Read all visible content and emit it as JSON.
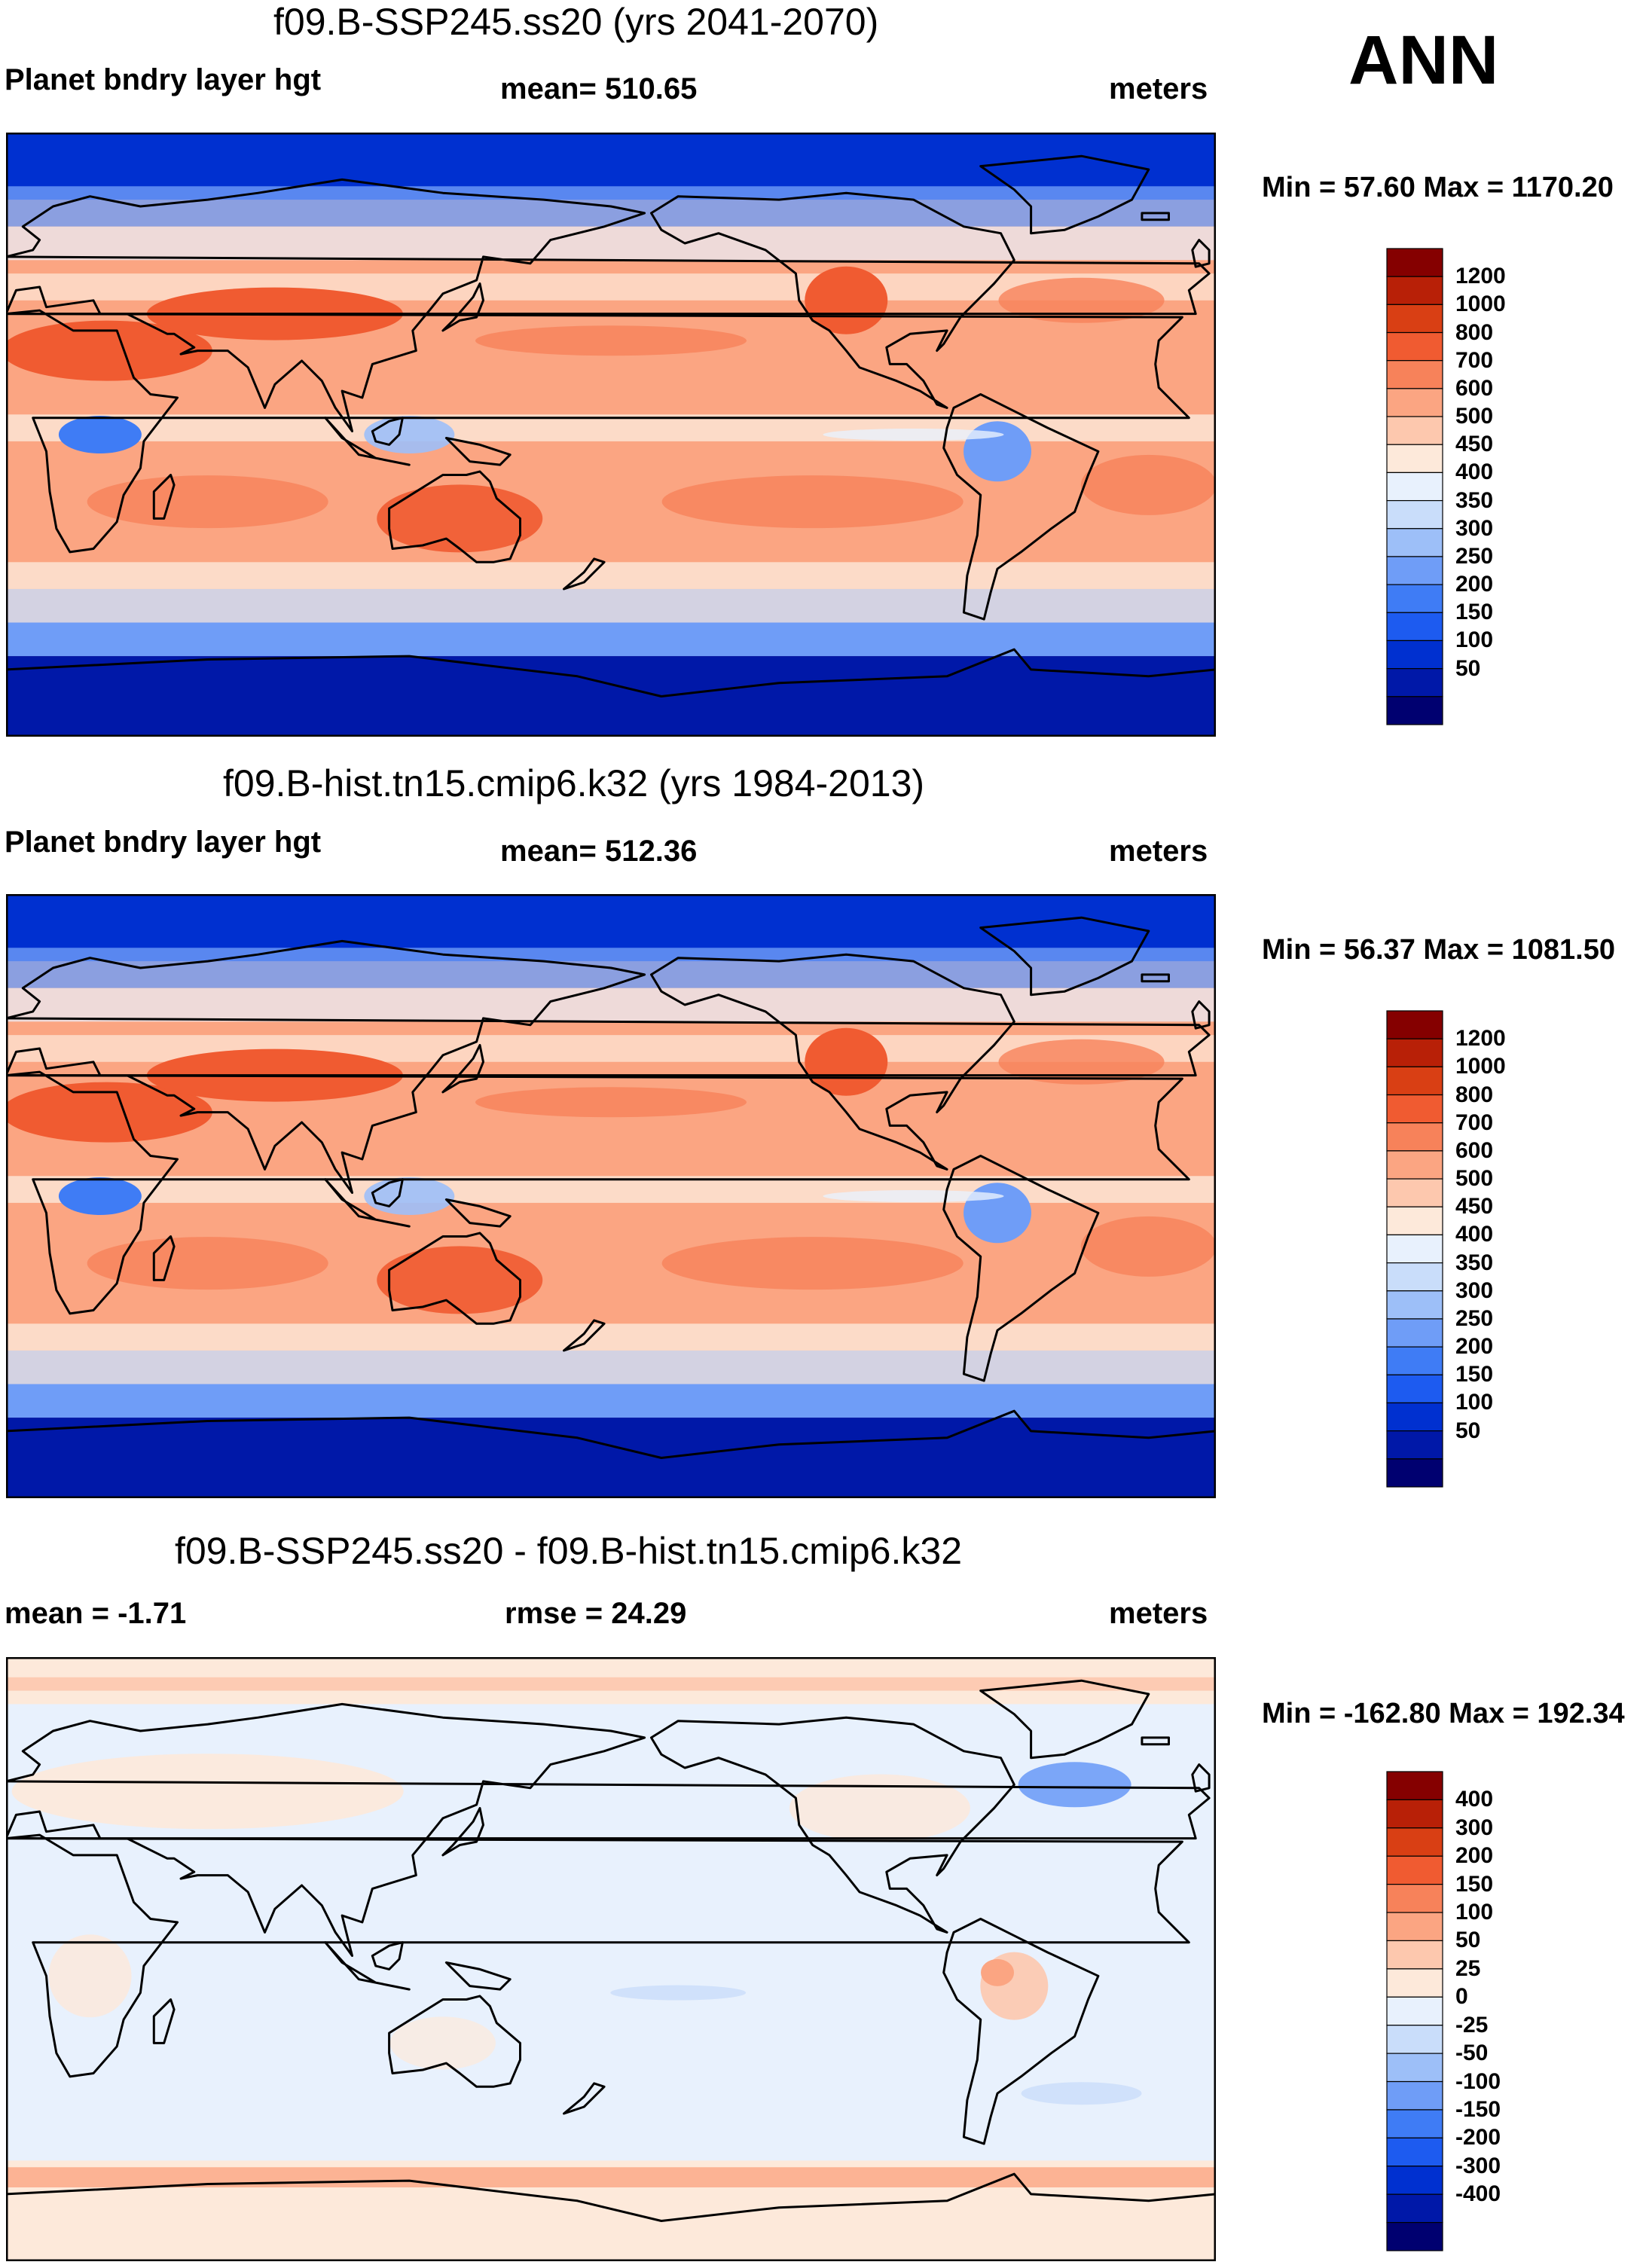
{
  "season": "ANN",
  "colors": {
    "abs_scale": [
      "#000070",
      "#0018a8",
      "#0030d0",
      "#1d5bf0",
      "#3f7cf5",
      "#6f9df7",
      "#9dbff8",
      "#c9ddfa",
      "#e8f1fd",
      "#fde9da",
      "#fdc8ae",
      "#fba582",
      "#f7825a",
      "#f05b31",
      "#d93f14",
      "#b82007",
      "#850000"
    ],
    "diff_scale": [
      "#000070",
      "#0018a8",
      "#0030d0",
      "#1d5bf0",
      "#3f7cf5",
      "#6f9df7",
      "#9dbff8",
      "#c9ddfa",
      "#e8f1fd",
      "#fde9da",
      "#fdc8ae",
      "#fba582",
      "#f7825a",
      "#f05b31",
      "#d93f14",
      "#b82007",
      "#850000"
    ],
    "coastline": "#000000"
  },
  "panels": [
    {
      "title": "f09.B-SSP245.ss20 (yrs 2041-2070)",
      "left_label": "Planet bndry layer hgt",
      "center_label": "mean= 510.65",
      "units": "meters",
      "minmax": "Min =  57.60 Max = 1170.20",
      "levels": [
        "1200",
        "1000",
        "800",
        "700",
        "600",
        "500",
        "450",
        "400",
        "350",
        "300",
        "250",
        "200",
        "150",
        "100",
        "50"
      ]
    },
    {
      "title": "f09.B-hist.tn15.cmip6.k32 (yrs 1984-2013)",
      "left_label": "Planet bndry layer hgt",
      "center_label": "mean= 512.36",
      "units": "meters",
      "minmax": "Min =  56.37 Max = 1081.50",
      "levels": [
        "1200",
        "1000",
        "800",
        "700",
        "600",
        "500",
        "450",
        "400",
        "350",
        "300",
        "250",
        "200",
        "150",
        "100",
        "50"
      ]
    },
    {
      "title": "f09.B-SSP245.ss20 - f09.B-hist.tn15.cmip6.k32",
      "left_label": "mean =  -1.71",
      "center_label": "rmse =  24.29",
      "units": "meters",
      "minmax": "Min = -162.80 Max = 192.34",
      "levels": [
        "400",
        "300",
        "200",
        "150",
        "100",
        "50",
        "25",
        "0",
        "-25",
        "-50",
        "-100",
        "-150",
        "-200",
        "-300",
        "-400"
      ]
    }
  ]
}
